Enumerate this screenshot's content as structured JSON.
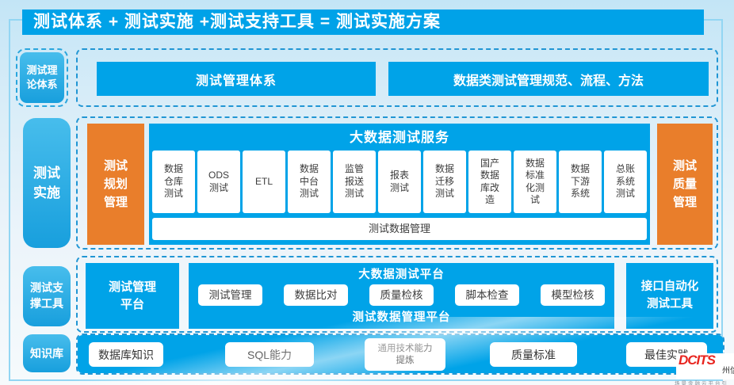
{
  "title": "测试体系 + 测试实施 +测试支持工具 = 测试实施方案",
  "colors": {
    "accent_blue": "#00a3e8",
    "accent_orange": "#e97e2b",
    "dashed_border": "#2196d4"
  },
  "left_rail": {
    "theory": "测试理\n论体系",
    "implementation": "测试\n实施",
    "support_tools": "测试支\n撑工具",
    "knowledge": "知识库"
  },
  "theory_section": {
    "box1": "测试管理体系",
    "box2": "数据类测试管理规范、流程、方法"
  },
  "implementation_section": {
    "left_box": "测试\n规划\n管理",
    "right_box": "测试\n质量\n管理",
    "panel_title": "大数据测试服务",
    "services": [
      "数据\n仓库\n测试",
      "ODS\n测试",
      "ETL",
      "数据\n中台\n测试",
      "监管\n报送\n测试",
      "报表\n测试",
      "数据\n迁移\n测试",
      "国产\n数据\n库改\n造",
      "数据\n标准\n化测\n试",
      "数据\n下游\n系统",
      "总账\n系统\n测试"
    ],
    "bottom_bar": "测试数据管理"
  },
  "tools_section": {
    "left_box": "测试管理\n平台",
    "panel_title": "大数据测试平台",
    "tools": [
      "测试管理",
      "数据比对",
      "质量检核",
      "脚本检查",
      "模型检核"
    ],
    "panel_footer": "测试数据管理平台",
    "right_box": "接口自动化\n测试工具"
  },
  "knowledge_section": {
    "items": [
      "数据库知识",
      "SQL能力",
      "通用技术能力\n提炼",
      "质量标准",
      "最佳实践"
    ]
  },
  "logo": {
    "brand": "DCITS",
    "brand_cn": "州信",
    "caption": "场景金融云平台引"
  }
}
